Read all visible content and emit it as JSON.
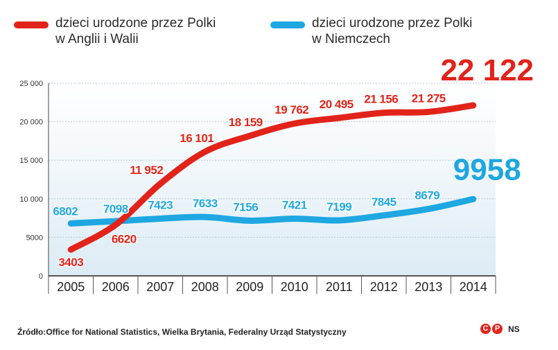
{
  "legend": {
    "red": {
      "line1": "dzieci urodzone przez Polki",
      "line2": "w Anglii i Walii"
    },
    "blue": {
      "line1": "dzieci urodzone przez Polki",
      "line2": "w Niemczech"
    }
  },
  "source": "Źródło:Office for National Statistics, Wielka Brytania, Federalny Urząd Statystyczny",
  "credit": {
    "c_symbol": "C",
    "p_symbol": "P",
    "initials": "NS"
  },
  "colors": {
    "red": "#e2231a",
    "blue": "#1ea7e1"
  },
  "chart_data": {
    "type": "line",
    "categories": [
      "2005",
      "2006",
      "2007",
      "2008",
      "2009",
      "2010",
      "2011",
      "2012",
      "2013",
      "2014"
    ],
    "ylim": [
      0,
      25000
    ],
    "yticks": [
      0,
      5000,
      10000,
      15000,
      20000,
      25000
    ],
    "ytick_labels": [
      "0",
      "5000",
      "10 000",
      "15 000",
      "20 000",
      "25 000"
    ],
    "series": [
      {
        "name": "dzieci urodzone przez Polki w Anglii i Walii",
        "color": "#e2231a",
        "values": [
          3403,
          6620,
          11952,
          16101,
          18159,
          19762,
          20495,
          21156,
          21275,
          22122
        ],
        "labels": [
          "3403",
          "6620",
          "11 952",
          "16 101",
          "18 159",
          "19 762",
          "20 495",
          "21 156",
          "21 275",
          "22 122"
        ]
      },
      {
        "name": "dzieci urodzone przez Polki w Niemczech",
        "color": "#1ea7e1",
        "values": [
          6802,
          7098,
          7423,
          7633,
          7156,
          7421,
          7199,
          7845,
          8679,
          9958
        ],
        "labels": [
          "6802",
          "7098",
          "7423",
          "7633",
          "7156",
          "7421",
          "7199",
          "7845",
          "8679",
          "9958"
        ]
      }
    ]
  }
}
